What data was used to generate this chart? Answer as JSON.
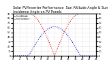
{
  "title": "Solar PV/Inverter Performance  Sun Altitude Angle & Sun Incidence Angle on PV Panels",
  "title_fontsize": 3.5,
  "x_start": 0,
  "x_end": 24,
  "x_ticks": [
    0,
    2,
    4,
    6,
    8,
    10,
    12,
    14,
    16,
    18,
    20,
    22,
    24
  ],
  "y_left_min": 0,
  "y_left_max": 90,
  "y_right_min": 0,
  "y_right_max": 90,
  "y_ticks": [
    0,
    10,
    20,
    30,
    40,
    50,
    60,
    70,
    80,
    90
  ],
  "blue_color": "#0000cc",
  "red_color": "#cc0000",
  "bg_color": "#ffffff",
  "grid_color": "#bbbbbb",
  "legend_blue": "Sun Altitude",
  "legend_red": "Sun Incidence",
  "sunrise": 4.5,
  "sunset": 19.5,
  "peak_hour": 12,
  "max_altitude": 62,
  "max_incidence": 90
}
